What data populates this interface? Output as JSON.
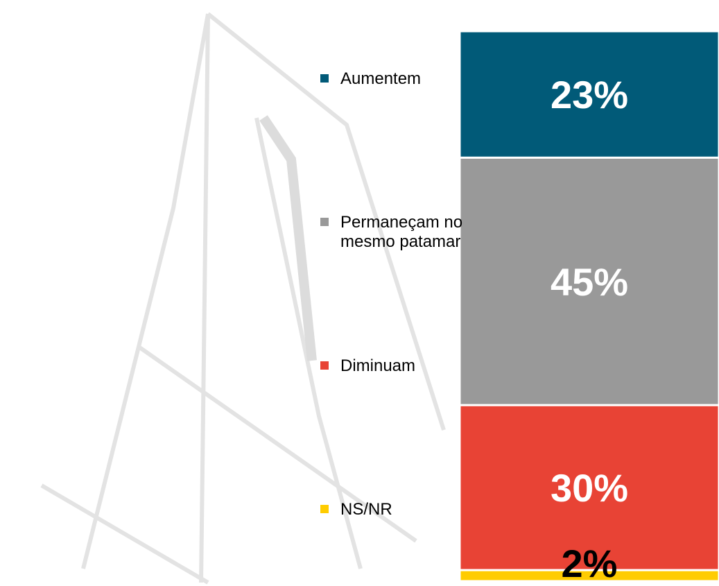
{
  "chart_data": {
    "type": "stacked-bar",
    "categories": [
      null
    ],
    "series": [
      {
        "name": "Aumentem",
        "color": "#015a78",
        "values": [
          23
        ],
        "value_labels": [
          "23%"
        ]
      },
      {
        "name": "Permaneçam no mesmo patamar",
        "color": "#999999",
        "values": [
          45
        ],
        "value_labels": [
          "45%"
        ]
      },
      {
        "name": "Diminuam",
        "color": "#e84335",
        "values": [
          30
        ],
        "value_labels": [
          "30%"
        ]
      },
      {
        "name": "NS/NR",
        "color": "#ffcc00",
        "values": [
          2
        ],
        "value_labels": [
          "2%"
        ]
      }
    ],
    "ylim": [
      0,
      100
    ],
    "legend": "left"
  }
}
